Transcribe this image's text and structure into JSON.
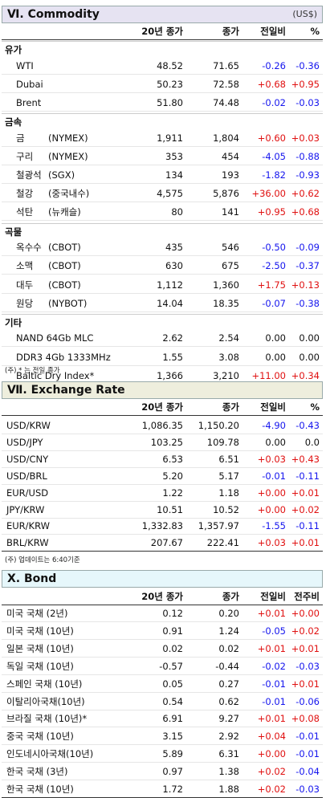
{
  "commodity": {
    "title": "Ⅵ. Commodity",
    "currency": "(US$)",
    "headers": [
      "20년 종가",
      "종가",
      "전일비",
      "%"
    ],
    "groups": [
      {
        "name": "유가",
        "rows": [
          {
            "name": "WTI",
            "sub": "",
            "v20": "48.52",
            "close": "71.65",
            "chg": "-0.26",
            "pct": "-0.36"
          },
          {
            "name": "Dubai",
            "sub": "",
            "v20": "50.23",
            "close": "72.58",
            "chg": "+0.68",
            "pct": "+0.95"
          },
          {
            "name": "Brent",
            "sub": "",
            "v20": "51.80",
            "close": "74.48",
            "chg": "-0.02",
            "pct": "-0.03"
          }
        ]
      },
      {
        "name": "금속",
        "rows": [
          {
            "name": "금",
            "sub": "(NYMEX)",
            "v20": "1,911",
            "close": "1,804",
            "chg": "+0.60",
            "pct": "+0.03"
          },
          {
            "name": "구리",
            "sub": "(NYMEX)",
            "v20": "353",
            "close": "454",
            "chg": "-4.05",
            "pct": "-0.88"
          },
          {
            "name": "철광석",
            "sub": "(SGX)",
            "v20": "134",
            "close": "193",
            "chg": "-1.82",
            "pct": "-0.93"
          },
          {
            "name": "철강",
            "sub": "(중국내수)",
            "v20": "4,575",
            "close": "5,876",
            "chg": "+36.00",
            "pct": "+0.62"
          },
          {
            "name": "석탄",
            "sub": "(뉴캐슬)",
            "v20": "80",
            "close": "141",
            "chg": "+0.95",
            "pct": "+0.68"
          }
        ]
      },
      {
        "name": "곡물",
        "rows": [
          {
            "name": "옥수수",
            "sub": "(CBOT)",
            "v20": "435",
            "close": "546",
            "chg": "-0.50",
            "pct": "-0.09"
          },
          {
            "name": "소맥",
            "sub": "(CBOT)",
            "v20": "630",
            "close": "675",
            "chg": "-2.50",
            "pct": "-0.37"
          },
          {
            "name": "대두",
            "sub": "(CBOT)",
            "v20": "1,112",
            "close": "1,360",
            "chg": "+1.75",
            "pct": "+0.13"
          },
          {
            "name": "원당",
            "sub": "(NYBOT)",
            "v20": "14.04",
            "close": "18.35",
            "chg": "-0.07",
            "pct": "-0.38"
          }
        ]
      },
      {
        "name": "기타",
        "rows": [
          {
            "name": "NAND 64Gb MLC",
            "sub": "",
            "v20": "2.62",
            "close": "2.54",
            "chg": "0.00",
            "pct": "0.00"
          },
          {
            "name": "DDR3 4Gb 1333MHz",
            "sub": "",
            "v20": "1.55",
            "close": "3.08",
            "chg": "0.00",
            "pct": "0.00"
          },
          {
            "name": "Baltic Dry Index*",
            "sub": "",
            "v20": "1,366",
            "close": "3,210",
            "chg": "+11.00",
            "pct": "+0.34"
          }
        ]
      }
    ],
    "note": "(주) * 는 전일 종가"
  },
  "exchange": {
    "title": "Ⅶ. Exchange Rate",
    "headers": [
      "20년 종가",
      "종가",
      "전일비",
      "%"
    ],
    "rows": [
      {
        "name": "USD/KRW",
        "v20": "1,086.35",
        "close": "1,150.20",
        "chg": "-4.90",
        "pct": "-0.43"
      },
      {
        "name": "USD/JPY",
        "v20": "103.25",
        "close": "109.78",
        "chg": "0.00",
        "pct": "0.0"
      },
      {
        "name": "USD/CNY",
        "v20": "6.53",
        "close": "6.51",
        "chg": "+0.03",
        "pct": "+0.43"
      },
      {
        "name": "USD/BRL",
        "v20": "5.20",
        "close": "5.17",
        "chg": "-0.01",
        "pct": "-0.11"
      },
      {
        "name": "EUR/USD",
        "v20": "1.22",
        "close": "1.18",
        "chg": "+0.00",
        "pct": "+0.01"
      },
      {
        "name": "JPY/KRW",
        "v20": "10.51",
        "close": "10.52",
        "chg": "+0.00",
        "pct": "+0.02"
      },
      {
        "name": "EUR/KRW",
        "v20": "1,332.83",
        "close": "1,357.97",
        "chg": "-1.55",
        "pct": "-0.11"
      },
      {
        "name": "BRL/KRW",
        "v20": "207.67",
        "close": "222.41",
        "chg": "+0.03",
        "pct": "+0.01"
      }
    ],
    "note": "(주) 업데이트는 6:40기준"
  },
  "bond": {
    "title": "X. Bond",
    "headers": [
      "20년 종가",
      "종가",
      "전일비",
      "전주비"
    ],
    "rows": [
      {
        "name": "미국 국채 (2년)",
        "v20": "0.12",
        "close": "0.20",
        "chg": "+0.01",
        "pct": "+0.00"
      },
      {
        "name": "미국 국채 (10년)",
        "v20": "0.91",
        "close": "1.24",
        "chg": "-0.05",
        "pct": "+0.02"
      },
      {
        "name": "일본 국채 (10년)",
        "v20": "0.02",
        "close": "0.02",
        "chg": "+0.01",
        "pct": "+0.01"
      },
      {
        "name": "독일 국채 (10년)",
        "v20": "-0.57",
        "close": "-0.44",
        "chg": "-0.02",
        "pct": "-0.03"
      },
      {
        "name": "스페인 국채 (10년)",
        "v20": "0.05",
        "close": "0.27",
        "chg": "-0.01",
        "pct": "+0.01"
      },
      {
        "name": "이탈리아국채(10년)",
        "v20": "0.54",
        "close": "0.62",
        "chg": "-0.01",
        "pct": "-0.06"
      },
      {
        "name": "브라질 국채 (10년)*",
        "v20": "6.91",
        "close": "9.27",
        "chg": "+0.01",
        "pct": "+0.08"
      },
      {
        "name": "중국 국채 (10년)",
        "v20": "3.15",
        "close": "2.92",
        "chg": "+0.04",
        "pct": "-0.01"
      },
      {
        "name": "인도네시아국채(10년)",
        "v20": "5.89",
        "close": "6.31",
        "chg": "+0.00",
        "pct": "-0.01"
      },
      {
        "name": "한국 국채 (3년)",
        "v20": "0.97",
        "close": "1.38",
        "chg": "+0.02",
        "pct": "-0.04"
      },
      {
        "name": "한국 국채 (10년)",
        "v20": "1.72",
        "close": "1.88",
        "chg": "+0.02",
        "pct": "-0.03"
      }
    ]
  },
  "colors": {
    "negative": "#1515ee",
    "positive": "#e01010",
    "commodity_header_bg": "#e6e3f2",
    "exchange_header_bg": "#eeeedd",
    "bond_header_bg": "#e6f7fb"
  }
}
